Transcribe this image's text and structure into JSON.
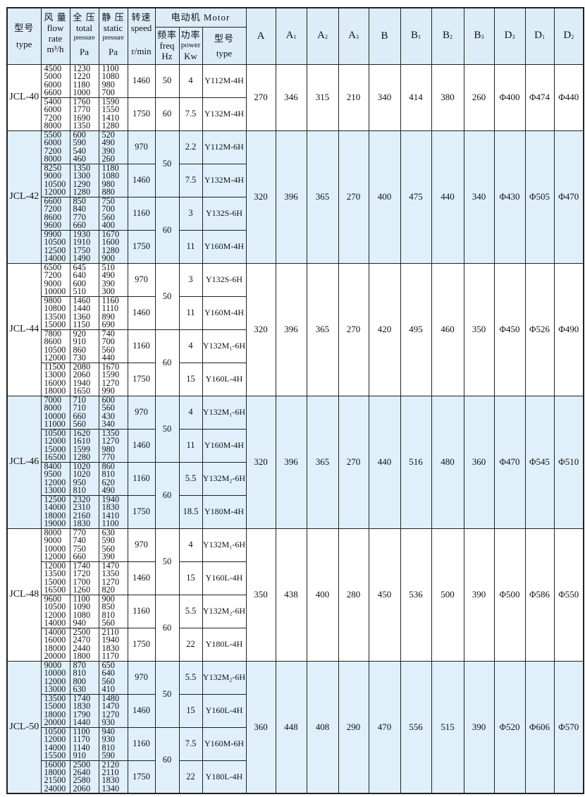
{
  "header": {
    "type": {
      "cn": "型号",
      "en": "type"
    },
    "flow": {
      "cn": "风 量",
      "en1": "flow",
      "en2": "rate",
      "unit": "m³/h"
    },
    "total": {
      "cn": "全 压",
      "en1": "total",
      "en2": "pressure",
      "unit": "Pa"
    },
    "static": {
      "cn": "静 压",
      "en1": "static",
      "en2": "pressure",
      "unit": "Pa"
    },
    "speed": {
      "cn": "转速",
      "en": "speed",
      "unit": "r/min"
    },
    "motor": {
      "title": "电动机 Motor",
      "freq": {
        "cn": "频率",
        "en": "freq",
        "unit": "Hz"
      },
      "power": {
        "cn": "功率",
        "en": "power",
        "unit": "Kw"
      },
      "type": {
        "cn": "型号",
        "en": "type"
      }
    },
    "dims": [
      {
        "base": "A",
        "sub": ""
      },
      {
        "base": "A",
        "sub": "1"
      },
      {
        "base": "A",
        "sub": "2"
      },
      {
        "base": "A",
        "sub": "3"
      },
      {
        "base": "B",
        "sub": ""
      },
      {
        "base": "B",
        "sub": "1"
      },
      {
        "base": "B",
        "sub": "2"
      },
      {
        "base": "B",
        "sub": "3"
      },
      {
        "base": "D",
        "sub": "3"
      },
      {
        "base": "D",
        "sub": "1"
      },
      {
        "base": "D",
        "sub": "2"
      }
    ]
  },
  "colors": {
    "header_bg": "#dcedf8",
    "alt_row_bg": "#dff0fa",
    "border": "#222222"
  },
  "models": [
    {
      "type": "JCL-40",
      "shaded": false,
      "dims": [
        "270",
        "346",
        "315",
        "210",
        "340",
        "414",
        "380",
        "260",
        "Φ400",
        "Φ474",
        "Φ440"
      ],
      "freq": [
        {
          "value": "50",
          "span": 1
        },
        {
          "value": "60",
          "span": 1
        }
      ],
      "rows": [
        {
          "flow": [
            "4500",
            "5000",
            "6000",
            "6600"
          ],
          "total": [
            "1230",
            "1220",
            "1180",
            "1000"
          ],
          "static": [
            "1100",
            "1080",
            "980",
            "700"
          ],
          "speed": "1460",
          "power": "4",
          "motor": "Y112M-4H"
        },
        {
          "flow": [
            "5400",
            "6000",
            "7200",
            "8000"
          ],
          "total": [
            "1760",
            "1770",
            "1690",
            "1350"
          ],
          "static": [
            "1590",
            "1550",
            "1410",
            "1280"
          ],
          "speed": "1750",
          "power": "7.5",
          "motor": "Y132M-4H"
        }
      ]
    },
    {
      "type": "JCL-42",
      "shaded": true,
      "dims": [
        "320",
        "396",
        "365",
        "270",
        "400",
        "475",
        "440",
        "340",
        "Φ430",
        "Φ505",
        "Φ470"
      ],
      "freq": [
        {
          "value": "50",
          "span": 2
        },
        {
          "value": "60",
          "span": 2
        }
      ],
      "rows": [
        {
          "flow": [
            "5500",
            "6000",
            "7200",
            "8000"
          ],
          "total": [
            "600",
            "590",
            "540",
            "460"
          ],
          "static": [
            "520",
            "490",
            "390",
            "260"
          ],
          "speed": "970",
          "power": "2.2",
          "motor": "Y112M-6H"
        },
        {
          "flow": [
            "8250",
            "9000",
            "10500",
            "12000"
          ],
          "total": [
            "1350",
            "1300",
            "1290",
            "1280"
          ],
          "static": [
            "1180",
            "1080",
            "980",
            "880"
          ],
          "speed": "1460",
          "power": "7.5",
          "motor": "Y132M-4H"
        },
        {
          "flow": [
            "6600",
            "7200",
            "8600",
            "9600"
          ],
          "total": [
            "850",
            "840",
            "770",
            "660"
          ],
          "static": [
            "750",
            "700",
            "560",
            "400"
          ],
          "speed": "1160",
          "power": "3",
          "motor": "Y132S-6H"
        },
        {
          "flow": [
            "9900",
            "10500",
            "12500",
            "14000"
          ],
          "total": [
            "1930",
            "1910",
            "1750",
            "1490"
          ],
          "static": [
            "1670",
            "1600",
            "1280",
            "900"
          ],
          "speed": "1750",
          "power": "11",
          "motor": "Y160M-4H"
        }
      ]
    },
    {
      "type": "JCL-44",
      "shaded": false,
      "dims": [
        "320",
        "396",
        "365",
        "270",
        "420",
        "495",
        "460",
        "350",
        "Φ450",
        "Φ526",
        "Φ490"
      ],
      "freq": [
        {
          "value": "50",
          "span": 2
        },
        {
          "value": "60",
          "span": 2
        }
      ],
      "rows": [
        {
          "flow": [
            "6500",
            "7200",
            "9000",
            "10000"
          ],
          "total": [
            "645",
            "640",
            "600",
            "510"
          ],
          "static": [
            "510",
            "490",
            "390",
            "300"
          ],
          "speed": "970",
          "power": "3",
          "motor": "Y132S-6H"
        },
        {
          "flow": [
            "9800",
            "10800",
            "13500",
            "15000"
          ],
          "total": [
            "1460",
            "1440",
            "1360",
            "1150"
          ],
          "static": [
            "1160",
            "1110",
            "890",
            "690"
          ],
          "speed": "1460",
          "power": "11",
          "motor": "Y160M-4H"
        },
        {
          "flow": [
            "7800",
            "8600",
            "10500",
            "12000"
          ],
          "total": [
            "920",
            "910",
            "860",
            "730"
          ],
          "static": [
            "740",
            "700",
            "560",
            "440"
          ],
          "speed": "1160",
          "power": "4",
          "motor": "Y132M₁-6H"
        },
        {
          "flow": [
            "11500",
            "13000",
            "16000",
            "18000"
          ],
          "total": [
            "2080",
            "2060",
            "1940",
            "1650"
          ],
          "static": [
            "1670",
            "1590",
            "1270",
            "990"
          ],
          "speed": "1750",
          "power": "15",
          "motor": "Y160L-4H"
        }
      ]
    },
    {
      "type": "JCL-46",
      "shaded": true,
      "dims": [
        "320",
        "396",
        "365",
        "270",
        "440",
        "516",
        "480",
        "360",
        "Φ470",
        "Φ545",
        "Φ510"
      ],
      "freq": [
        {
          "value": "50",
          "span": 2
        },
        {
          "value": "60",
          "span": 2
        }
      ],
      "rows": [
        {
          "flow": [
            "7000",
            "8000",
            "10000",
            "11000"
          ],
          "total": [
            "710",
            "710",
            "660",
            "560"
          ],
          "static": [
            "600",
            "560",
            "430",
            "340"
          ],
          "speed": "970",
          "power": "4",
          "motor": "Y132M₁-6H"
        },
        {
          "flow": [
            "10500",
            "12000",
            "15000",
            "16500"
          ],
          "total": [
            "1620",
            "1610",
            "1599",
            "1280"
          ],
          "static": [
            "1350",
            "1270",
            "980",
            "770"
          ],
          "speed": "1460",
          "power": "11",
          "motor": "Y160M-4H"
        },
        {
          "flow": [
            "8400",
            "9500",
            "12000",
            "13000"
          ],
          "total": [
            "1020",
            "1020",
            "950",
            "810"
          ],
          "static": [
            "860",
            "810",
            "620",
            "490"
          ],
          "speed": "1160",
          "power": "5.5",
          "motor": "Y132M₂-6H"
        },
        {
          "flow": [
            "12500",
            "14000",
            "18000",
            "19000"
          ],
          "total": [
            "2320",
            "2310",
            "2160",
            "1830"
          ],
          "static": [
            "1940",
            "1830",
            "1410",
            "1100"
          ],
          "speed": "1750",
          "power": "18.5",
          "motor": "Y180M-4H"
        }
      ]
    },
    {
      "type": "JCL-48",
      "shaded": false,
      "dims": [
        "350",
        "438",
        "400",
        "280",
        "450",
        "536",
        "500",
        "390",
        "Φ500",
        "Φ586",
        "Φ550"
      ],
      "freq": [
        {
          "value": "50",
          "span": 2
        },
        {
          "value": "60",
          "span": 2
        }
      ],
      "rows": [
        {
          "flow": [
            "8000",
            "9000",
            "10000",
            "12000"
          ],
          "total": [
            "770",
            "740",
            "750",
            "660"
          ],
          "static": [
            "630",
            "590",
            "560",
            "390"
          ],
          "speed": "970",
          "power": "4",
          "motor": "Y132M₁-6H"
        },
        {
          "flow": [
            "12000",
            "13500",
            "15000",
            "16500"
          ],
          "total": [
            "1740",
            "1720",
            "1700",
            "1260"
          ],
          "static": [
            "1470",
            "1350",
            "1270",
            "820"
          ],
          "speed": "1460",
          "power": "15",
          "motor": "Y160L-4H"
        },
        {
          "flow": [
            "9600",
            "10500",
            "12000",
            "14000"
          ],
          "total": [
            "1100",
            "1090",
            "1080",
            "940"
          ],
          "static": [
            "900",
            "850",
            "810",
            "560"
          ],
          "speed": "1160",
          "power": "5.5",
          "motor": "Y132M₂-6H"
        },
        {
          "flow": [
            "14000",
            "16000",
            "18000",
            "20000"
          ],
          "total": [
            "2500",
            "2470",
            "2440",
            "1800"
          ],
          "static": [
            "2110",
            "1940",
            "1830",
            "1170"
          ],
          "speed": "1750",
          "power": "22",
          "motor": "Y180L-4H"
        }
      ]
    },
    {
      "type": "JCL-50",
      "shaded": true,
      "dims": [
        "360",
        "448",
        "408",
        "290",
        "470",
        "556",
        "515",
        "390",
        "Φ520",
        "Φ606",
        "Φ570"
      ],
      "freq": [
        {
          "value": "50",
          "span": 2
        },
        {
          "value": "60",
          "span": 2
        }
      ],
      "rows": [
        {
          "flow": [
            "9000",
            "10000",
            "12000",
            "13000"
          ],
          "total": [
            "870",
            "810",
            "800",
            "630"
          ],
          "static": [
            "650",
            "640",
            "560",
            "410"
          ],
          "speed": "970",
          "power": "5.5",
          "motor": "Y132M₂-6H"
        },
        {
          "flow": [
            "13500",
            "15000",
            "18000",
            "20000"
          ],
          "total": [
            "1740",
            "1830",
            "1790",
            "1440"
          ],
          "static": [
            "1480",
            "1470",
            "1270",
            "930"
          ],
          "speed": "1460",
          "power": "15",
          "motor": "Y160L-4H"
        },
        {
          "flow": [
            "10500",
            "12000",
            "14000",
            "15500"
          ],
          "total": [
            "1100",
            "1170",
            "1140",
            "910"
          ],
          "static": [
            "940",
            "930",
            "810",
            "590"
          ],
          "speed": "1160",
          "power": "7.5",
          "motor": "Y160M-6H"
        },
        {
          "flow": [
            "16000",
            "18000",
            "21500",
            "24000"
          ],
          "total": [
            "2500",
            "2640",
            "2580",
            "2060"
          ],
          "static": [
            "2120",
            "2110",
            "1830",
            "1340"
          ],
          "speed": "1750",
          "power": "22",
          "motor": "Y180L-4H"
        }
      ]
    }
  ]
}
